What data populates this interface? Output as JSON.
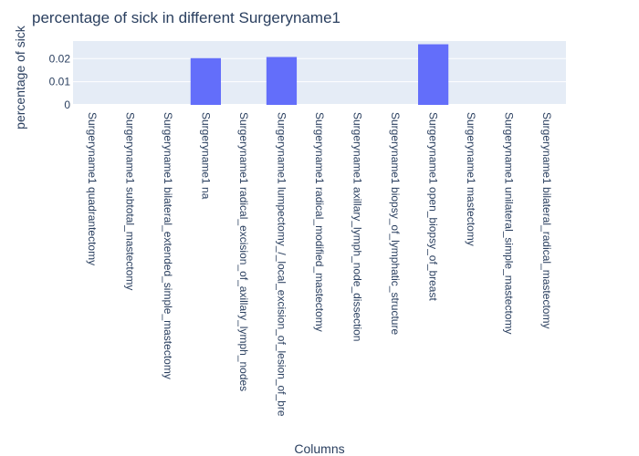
{
  "chart_data": {
    "type": "bar",
    "title": "percentage of sick in different Surgeryname1",
    "xlabel": "Columns",
    "ylabel": "percentage of sick",
    "categories": [
      "Surgeryname1 quadrantectomy",
      "Surgeryname1 subtotal_mastectomy",
      "Surgeryname1 bilateral_extended_simple_mastectomy",
      "Surgeryname1 na",
      "Surgeryname1 radical_excision_of_axillary_lymph_nodes",
      "Surgeryname1 lumpectomy_/_local_excision_of_lesion_of_bre",
      "Surgeryname1 radical_modified_mastectomy",
      "Surgeryname1 axillary_lymph_node_dissection",
      "Surgeryname1 biopsy_of_lymphatic_structure",
      "Surgeryname1 open_biopsy_of_breast",
      "Surgeryname1 mastectomy",
      "Surgeryname1 unilateral_simple_mastectomy",
      "Surgeryname1 bilateral_radical_mastectomy"
    ],
    "values": [
      0,
      0,
      0,
      0.0202,
      0,
      0.0207,
      0,
      0,
      0,
      0.0262,
      0,
      0,
      0
    ],
    "yticks": [
      0,
      0.01,
      0.02
    ],
    "ytick_labels": [
      "0",
      "0.01",
      "0.02"
    ],
    "ylim": [
      0,
      0.0276
    ],
    "grid": true,
    "colors": {
      "bar": "#636efa",
      "plot_bg": "#e5ecf6",
      "grid": "#ffffff",
      "text": "#2a3f5f"
    }
  }
}
